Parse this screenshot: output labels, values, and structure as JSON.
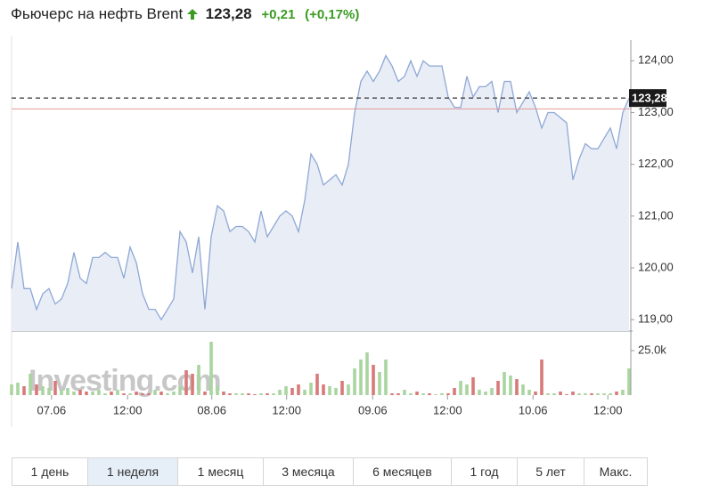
{
  "header": {
    "title": "Фьючерс на нефть Brent",
    "price": "123,28",
    "change": "+0,21",
    "change_percent": "(+0,17%)"
  },
  "chart_data": {
    "type": "line",
    "color": "#8ea8d5",
    "fill_color": "#e9edf6",
    "values": [
      119.6,
      120.5,
      119.6,
      119.6,
      119.2,
      119.5,
      119.6,
      119.3,
      119.4,
      119.7,
      120.3,
      119.8,
      119.7,
      120.2,
      120.2,
      120.3,
      120.2,
      120.2,
      119.8,
      120.4,
      120.1,
      119.5,
      119.2,
      119.2,
      119.0,
      119.2,
      119.4,
      120.7,
      120.5,
      119.9,
      120.6,
      119.2,
      120.6,
      121.2,
      121.1,
      120.7,
      120.8,
      120.8,
      120.7,
      120.5,
      121.1,
      120.6,
      120.8,
      121.0,
      121.1,
      121.0,
      120.7,
      121.3,
      122.2,
      122.0,
      121.6,
      121.7,
      121.8,
      121.6,
      122.0,
      123.0,
      123.6,
      123.8,
      123.6,
      123.8,
      124.1,
      123.9,
      123.6,
      123.7,
      124.0,
      123.7,
      124.0,
      123.9,
      123.9,
      123.9,
      123.3,
      123.1,
      123.1,
      123.7,
      123.3,
      123.5,
      123.5,
      123.6,
      123.0,
      123.6,
      123.6,
      123.0,
      123.2,
      123.4,
      123.1,
      122.7,
      123.0,
      123.0,
      122.9,
      122.8,
      121.7,
      122.1,
      122.4,
      122.3,
      122.3,
      122.5,
      122.7,
      122.3,
      123.0,
      123.28
    ],
    "xlim": [
      0,
      99
    ],
    "xticks": [
      {
        "value": 6.4,
        "label": "07.06"
      },
      {
        "value": 18.6,
        "label": "12:00"
      },
      {
        "value": 32.1,
        "label": "08.06"
      },
      {
        "value": 44.1,
        "label": "12:00"
      },
      {
        "value": 57.9,
        "label": "09.06"
      },
      {
        "value": 69.9,
        "label": "12:00"
      },
      {
        "value": 83.6,
        "label": "10.06"
      },
      {
        "value": 95.6,
        "label": "12:00"
      }
    ],
    "ylim": [
      118.78,
      124.4
    ],
    "yticks": [
      {
        "value": 119,
        "label": "119,00"
      },
      {
        "value": 120,
        "label": "120,00"
      },
      {
        "value": 121,
        "label": "121,00"
      },
      {
        "value": 122,
        "label": "122,00"
      },
      {
        "value": 123,
        "label": "123,00"
      },
      {
        "value": 124,
        "label": "124,00"
      }
    ],
    "last_value": {
      "value": 123.28,
      "label": "123,28"
    },
    "previous_close": 123.07,
    "watermark": "Investing.com",
    "volume": {
      "up_color": "#a9d5a0",
      "down_color": "#d87a7a",
      "ylim": [
        0,
        33000
      ],
      "yticks": [
        {
          "value": 25000,
          "label": "25.0k"
        }
      ],
      "values": [
        6000,
        7000,
        5000,
        12000,
        6000,
        5000,
        4000,
        8000,
        3000,
        4000,
        2000,
        3000,
        2000,
        2000,
        3000,
        1000,
        2000,
        3000,
        1000,
        1000,
        2000,
        1000,
        1000,
        3000,
        2000,
        1000,
        2000,
        5000,
        14000,
        12000,
        17000,
        2000,
        30000,
        5000,
        2000,
        1000,
        1000,
        1000,
        1000,
        500,
        1000,
        1000,
        1000,
        3000,
        5000,
        4000,
        6000,
        3000,
        7000,
        12000,
        6000,
        5000,
        4000,
        8000,
        6000,
        15000,
        20000,
        24000,
        17000,
        13000,
        20000,
        1000,
        1000,
        3000,
        1000,
        2000,
        1000,
        1000,
        500,
        1000,
        1000,
        4000,
        8000,
        6000,
        10000,
        3000,
        2000,
        4000,
        8000,
        13000,
        11000,
        9000,
        6000,
        3000,
        2000,
        20000,
        1000,
        1000,
        2000,
        500,
        2000,
        1000,
        1000,
        1000,
        1000,
        1000,
        1000,
        2000,
        3000,
        15000
      ]
    }
  },
  "ranges": [
    "1 день",
    "1 неделя",
    "1 месяц",
    "3 месяца",
    "6 месяцев",
    "1 год",
    "5 лет",
    "Макс."
  ],
  "selected_range": 1
}
